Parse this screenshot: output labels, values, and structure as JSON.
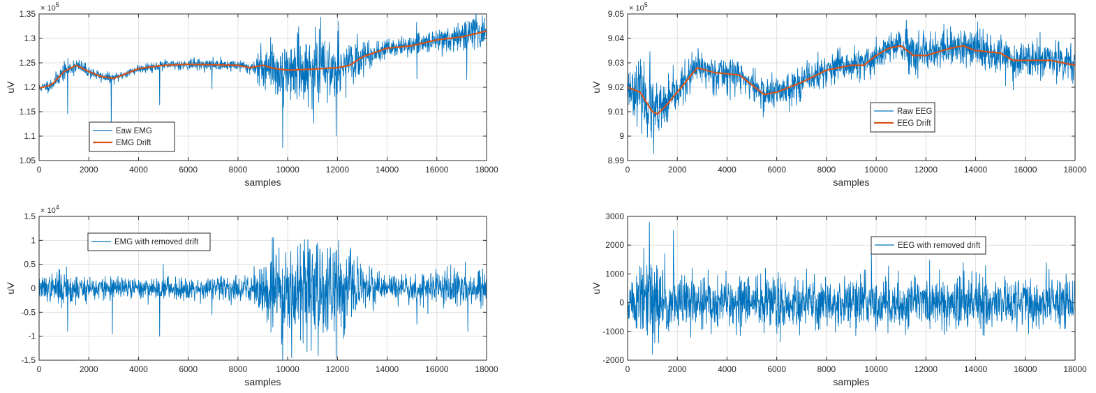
{
  "colors": {
    "raw": "#0072BD",
    "drift": "#D95319",
    "axis": "#262626",
    "grid": "#DFDFDF",
    "background": "#FFFFFF"
  },
  "chart_data": [
    {
      "type": "line",
      "xlabel": "samples",
      "ylabel": "uV",
      "exponent": "5",
      "xlim": [
        0,
        18000
      ],
      "ylim": [
        1.05,
        1.35
      ],
      "xticks": [
        "0",
        "2000",
        "4000",
        "6000",
        "8000",
        "10000",
        "12000",
        "14000",
        "16000",
        "18000"
      ],
      "yticks": [
        "1.05",
        "1.1",
        "1.15",
        "1.2",
        "1.25",
        "1.3",
        "1.35"
      ],
      "grid": true,
      "legend_position": "lower-left",
      "noise_seed": 11,
      "series": [
        {
          "name": "Eaw EMG",
          "role": "raw",
          "x": [
            0,
            500,
            1000,
            1500,
            2000,
            2500,
            3000,
            4000,
            5000,
            6000,
            7000,
            8000,
            8500,
            9000,
            9500,
            10000,
            11000,
            12000,
            12500,
            13000,
            14000,
            15000,
            16000,
            17000,
            18000
          ],
          "y": [
            1.198,
            1.205,
            1.232,
            1.245,
            1.232,
            1.222,
            1.218,
            1.238,
            1.245,
            1.247,
            1.246,
            1.245,
            1.24,
            1.245,
            1.238,
            1.235,
            1.237,
            1.24,
            1.245,
            1.262,
            1.28,
            1.285,
            1.297,
            1.303,
            1.315
          ],
          "noise": [
            [
              0,
              0.003
            ],
            [
              1000,
              0.006
            ],
            [
              2000,
              0.004
            ],
            [
              3000,
              0.003
            ],
            [
              8500,
              0.004
            ],
            [
              9500,
              0.022
            ],
            [
              10000,
              0.018
            ],
            [
              11000,
              0.025
            ],
            [
              12000,
              0.018
            ],
            [
              13000,
              0.01
            ],
            [
              14000,
              0.006
            ],
            [
              16000,
              0.007
            ],
            [
              17500,
              0.012
            ],
            [
              18000,
              0.01
            ]
          ],
          "spikes": [
            [
              1150,
              -0.09
            ],
            [
              2900,
              -0.1
            ],
            [
              4850,
              -0.08
            ],
            [
              6950,
              -0.05
            ],
            [
              8850,
              -0.04
            ],
            [
              9700,
              -0.125
            ],
            [
              9800,
              -0.16
            ],
            [
              11050,
              -0.11
            ],
            [
              11950,
              -0.14
            ],
            [
              15200,
              -0.07
            ],
            [
              17200,
              -0.09
            ],
            [
              9700,
              0.08
            ],
            [
              12050,
              0.095
            ]
          ]
        },
        {
          "name": "EMG Drift",
          "role": "drift",
          "x": [
            0,
            500,
            1000,
            1500,
            2000,
            2500,
            3000,
            4000,
            5000,
            6000,
            7000,
            8000,
            8500,
            9000,
            9500,
            10000,
            11000,
            12000,
            12500,
            13000,
            14000,
            15000,
            16000,
            17000,
            18000
          ],
          "y": [
            1.198,
            1.205,
            1.232,
            1.245,
            1.232,
            1.222,
            1.218,
            1.238,
            1.245,
            1.247,
            1.246,
            1.245,
            1.24,
            1.245,
            1.238,
            1.235,
            1.237,
            1.24,
            1.245,
            1.262,
            1.28,
            1.285,
            1.297,
            1.303,
            1.315
          ]
        }
      ]
    },
    {
      "type": "line",
      "xlabel": "samples",
      "ylabel": "uV",
      "exponent": "5",
      "xlim": [
        0,
        18000
      ],
      "ylim": [
        8.99,
        9.05
      ],
      "xticks": [
        "0",
        "2000",
        "4000",
        "6000",
        "8000",
        "10000",
        "12000",
        "14000",
        "16000",
        "18000"
      ],
      "yticks": [
        "8.99",
        "9",
        "9.01",
        "9.02",
        "9.03",
        "9.04",
        "9.05"
      ],
      "grid": true,
      "legend_position": "center-right",
      "noise_seed": 23,
      "series": [
        {
          "name": "Raw EEG",
          "role": "raw",
          "x": [
            0,
            500,
            1000,
            1200,
            1500,
            2000,
            2800,
            3500,
            4500,
            5000,
            5500,
            6000,
            7000,
            8000,
            9000,
            9500,
            10000,
            10500,
            11000,
            11500,
            12000,
            13000,
            13500,
            14000,
            15000,
            15500,
            16500,
            17000,
            18000
          ],
          "y": [
            9.02,
            9.018,
            9.01,
            9.009,
            9.012,
            9.018,
            9.028,
            9.026,
            9.025,
            9.021,
            9.017,
            9.018,
            9.022,
            9.027,
            9.029,
            9.029,
            9.033,
            9.036,
            9.037,
            9.033,
            9.033,
            9.036,
            9.037,
            9.035,
            9.034,
            9.031,
            9.031,
            9.031,
            9.029
          ],
          "noise": [
            [
              0,
              0.0025
            ],
            [
              700,
              0.0045
            ],
            [
              1200,
              0.004
            ],
            [
              2000,
              0.0025
            ],
            [
              8000,
              0.0022
            ],
            [
              13500,
              0.0028
            ],
            [
              18000,
              0.0022
            ]
          ],
          "spikes": [
            [
              900,
              0.023
            ],
            [
              1050,
              -0.017
            ]
          ]
        },
        {
          "name": "EEG Drift",
          "role": "drift",
          "x": [
            0,
            500,
            1000,
            1200,
            1500,
            2000,
            2800,
            3500,
            4500,
            5000,
            5500,
            6000,
            7000,
            8000,
            9000,
            9500,
            10000,
            10500,
            11000,
            11500,
            12000,
            13000,
            13500,
            14000,
            15000,
            15500,
            16500,
            17000,
            18000
          ],
          "y": [
            9.02,
            9.018,
            9.01,
            9.009,
            9.012,
            9.018,
            9.028,
            9.026,
            9.025,
            9.021,
            9.017,
            9.018,
            9.022,
            9.027,
            9.029,
            9.029,
            9.033,
            9.036,
            9.037,
            9.033,
            9.033,
            9.036,
            9.037,
            9.035,
            9.034,
            9.031,
            9.031,
            9.031,
            9.029
          ]
        }
      ]
    },
    {
      "type": "line",
      "xlabel": "samples",
      "ylabel": "uV",
      "exponent": "4",
      "xlim": [
        0,
        18000
      ],
      "ylim": [
        -1.5,
        1.5
      ],
      "xticks": [
        "0",
        "2000",
        "4000",
        "6000",
        "8000",
        "10000",
        "12000",
        "14000",
        "16000",
        "18000"
      ],
      "yticks": [
        "-1.5",
        "-1",
        "-0.5",
        "0",
        "0.5",
        "1",
        "1.5"
      ],
      "grid": true,
      "legend_position": "top-left",
      "noise_seed": 37,
      "series": [
        {
          "name": "EMG with removed drift",
          "role": "raw",
          "x": [
            0,
            18000
          ],
          "y": [
            0,
            0
          ],
          "noise": [
            [
              0,
              0.07
            ],
            [
              1000,
              0.12
            ],
            [
              2000,
              0.09
            ],
            [
              3000,
              0.07
            ],
            [
              8500,
              0.08
            ],
            [
              9500,
              0.42
            ],
            [
              10000,
              0.32
            ],
            [
              11000,
              0.38
            ],
            [
              12000,
              0.32
            ],
            [
              13000,
              0.15
            ],
            [
              14000,
              0.1
            ],
            [
              17500,
              0.12
            ],
            [
              18000,
              0.1
            ]
          ],
          "spikes": [
            [
              1150,
              -0.9
            ],
            [
              2950,
              -0.95
            ],
            [
              4850,
              -1.0
            ],
            [
              6950,
              -0.55
            ],
            [
              8850,
              -0.4
            ],
            [
              9700,
              -1.25
            ],
            [
              9800,
              -1.6
            ],
            [
              10950,
              -1.3
            ],
            [
              11950,
              -1.45
            ],
            [
              15200,
              -0.75
            ],
            [
              17250,
              -0.9
            ],
            [
              9700,
              0.85
            ],
            [
              12050,
              1.0
            ],
            [
              11200,
              0.95
            ],
            [
              1100,
              0.45
            ],
            [
              5000,
              0.5
            ],
            [
              17150,
              0.55
            ]
          ]
        }
      ]
    },
    {
      "type": "line",
      "xlabel": "samples",
      "ylabel": "uV",
      "exponent": "",
      "xlim": [
        0,
        18000
      ],
      "ylim": [
        -2000,
        3000
      ],
      "xticks": [
        "0",
        "2000",
        "4000",
        "6000",
        "8000",
        "10000",
        "12000",
        "14000",
        "16000",
        "18000"
      ],
      "yticks": [
        "-2000",
        "-1000",
        "0",
        "1000",
        "2000",
        "3000"
      ],
      "grid": true,
      "legend_position": "top-right",
      "noise_seed": 51,
      "series": [
        {
          "name": "EEG with removed drift",
          "role": "raw",
          "x": [
            0,
            18000
          ],
          "y": [
            0,
            0
          ],
          "noise": [
            [
              0,
              280
            ],
            [
              700,
              520
            ],
            [
              1200,
              430
            ],
            [
              2000,
              320
            ],
            [
              8000,
              290
            ],
            [
              13500,
              330
            ],
            [
              18000,
              290
            ]
          ],
          "spikes": [
            [
              880,
              2800
            ],
            [
              1000,
              -1800
            ],
            [
              1850,
              2500
            ],
            [
              650,
              1900
            ],
            [
              1250,
              -1400
            ],
            [
              1500,
              1700
            ],
            [
              2600,
              1200
            ],
            [
              13500,
              1400
            ]
          ]
        }
      ]
    }
  ]
}
